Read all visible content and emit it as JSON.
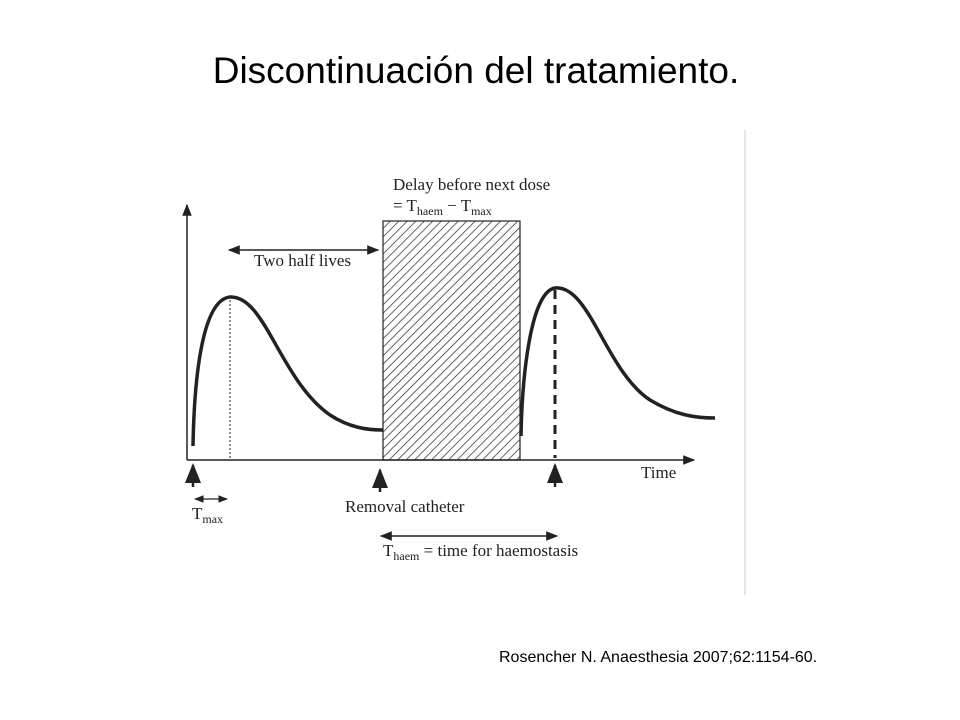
{
  "title": "Discontinuación del tratamiento.",
  "diagram": {
    "delay": {
      "line1": "Delay before next dose",
      "prefix": "= T",
      "sub1": "haem",
      "mid": " − T",
      "sub2": "max"
    },
    "half_lives": "Two half lives",
    "x_axis": "Time",
    "tmax": {
      "main": "T",
      "sub": "max"
    },
    "removal": "Removal catheter",
    "thaem": {
      "main": "T",
      "sub": "haem",
      "rest": " = time for haemostasis"
    }
  },
  "citation": "Rosencher N. Anaesthesia 2007;62:1154-60."
}
